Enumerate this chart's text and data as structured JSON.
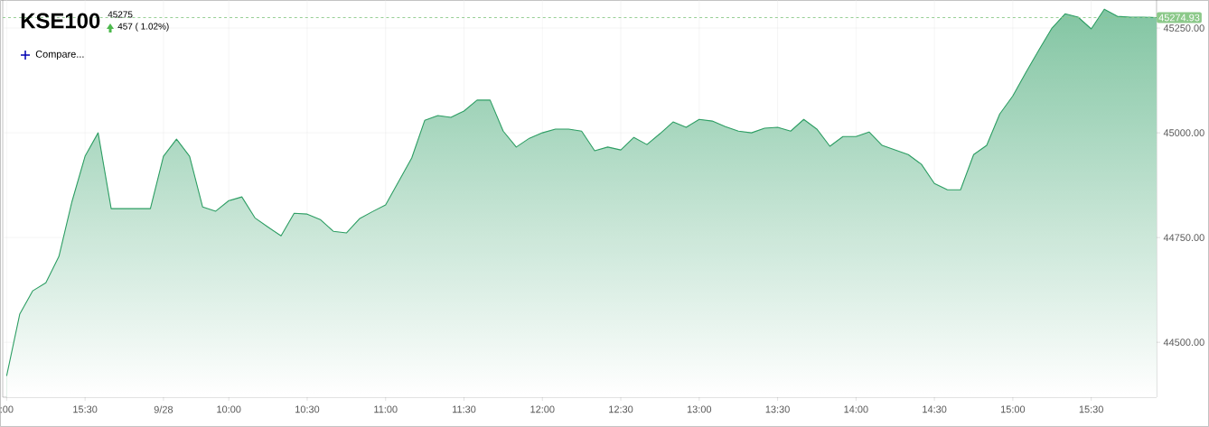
{
  "chart_data": {
    "type": "area",
    "title": "KSE100",
    "subtitle": "45275",
    "annotations": [
      "457 ( 1.02%)",
      "Compare..."
    ],
    "categories": [
      ":00",
      null,
      null,
      null,
      null,
      null,
      "15:30",
      null,
      null,
      null,
      null,
      null,
      "9/28",
      null,
      null,
      null,
      null,
      "10:00",
      null,
      null,
      null,
      null,
      null,
      "10:30",
      null,
      null,
      null,
      null,
      null,
      "11:00",
      null,
      null,
      null,
      null,
      null,
      "11:30",
      null,
      null,
      null,
      null,
      null,
      "12:00",
      null,
      null,
      null,
      null,
      null,
      "12:30",
      null,
      null,
      null,
      null,
      null,
      "13:00",
      null,
      null,
      null,
      null,
      null,
      "13:30",
      null,
      null,
      null,
      null,
      null,
      "14:00",
      null,
      null,
      null,
      null,
      null,
      "14:30",
      null,
      null,
      null,
      null,
      null,
      "15:00",
      null,
      null,
      null,
      null,
      null,
      "15:30",
      null,
      null,
      null,
      null,
      null
    ],
    "series": [
      {
        "color": "#2e9e64",
        "values": [
          44420,
          44567,
          44623,
          44642,
          44705,
          44836,
          44944,
          45000,
          44819,
          44819,
          44819,
          44819,
          44944,
          44985,
          44944,
          44823,
          44813,
          44838,
          44847,
          44797,
          44775,
          44754,
          44808,
          44806,
          44793,
          44765,
          44761,
          44795,
          44812,
          44828,
          44884,
          44940,
          45030,
          45041,
          45037,
          45052,
          45078,
          45078,
          45004,
          44966,
          44987,
          45000,
          45009,
          45009,
          45004,
          44957,
          44966,
          44959,
          44989,
          44972,
          44998,
          45026,
          45013,
          45032,
          45028,
          45015,
          45004,
          45000,
          45011,
          45013,
          45004,
          45032,
          45009,
          44968,
          44991,
          44991,
          45002,
          44970,
          44959,
          44948,
          44925,
          44879,
          44864,
          44864,
          44948,
          44970,
          45045,
          45088,
          45144,
          45198,
          45250,
          45284,
          45276,
          45248,
          45295,
          45278,
          45276,
          45276,
          45275
        ]
      }
    ],
    "ylim": [
      44369,
      45317
    ],
    "yticks": [
      {
        "value": 44500,
        "label": "44500.00"
      },
      {
        "value": 44750,
        "label": "44750.00"
      },
      {
        "value": 45000,
        "label": "45000.00"
      },
      {
        "value": 45250,
        "label": "45250.00"
      }
    ],
    "ref_lines": [
      {
        "axis": "y",
        "value": 45274.93,
        "label": "45274.93",
        "color": "#8cc98a",
        "line_style": "dashed"
      }
    ],
    "grid": true
  }
}
